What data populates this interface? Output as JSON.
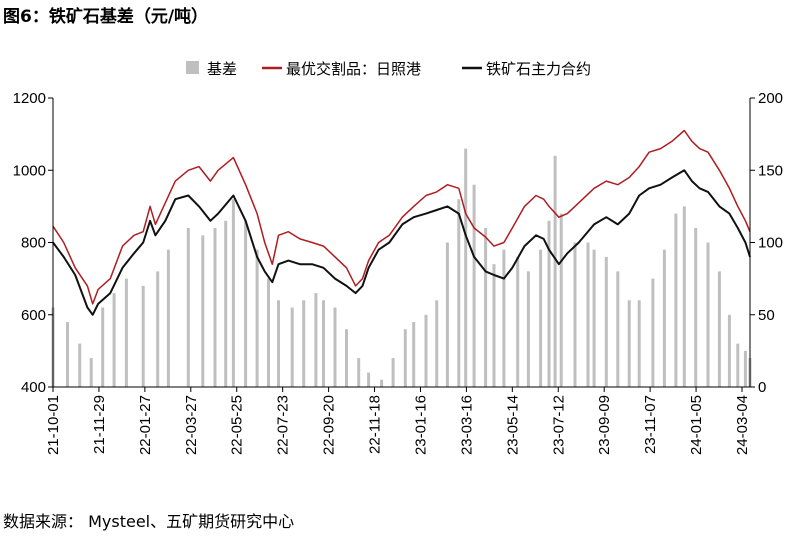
{
  "figure": {
    "title": "图6：铁矿石基差（元/吨）",
    "source": "数据来源： Mysteel、五矿期货研究中心"
  },
  "colors": {
    "basis": "#bfbfbf",
    "spot": "#b01c20",
    "futures": "#111111"
  },
  "chart_data": {
    "type": "line",
    "title": "",
    "legend_position": "top",
    "grid": false,
    "x_ticks": [
      "21-10-01",
      "21-11-29",
      "22-01-27",
      "22-03-27",
      "22-05-25",
      "22-07-23",
      "22-09-20",
      "22-11-18",
      "23-01-16",
      "23-03-16",
      "23-05-14",
      "23-07-12",
      "23-09-09",
      "23-11-07",
      "24-01-05",
      "24-03-04"
    ],
    "x_range": [
      "2021-10-01",
      "2024-03-31"
    ],
    "y_left": {
      "range": [
        400,
        1200
      ],
      "ticks": [
        400,
        600,
        800,
        1000,
        1200
      ]
    },
    "y_right": {
      "range": [
        0,
        200
      ],
      "ticks": [
        0,
        50,
        100,
        150,
        200
      ]
    },
    "series": [
      {
        "name": "基差",
        "type": "bar",
        "axis": "right",
        "color_key": "basis",
        "points": [
          [
            "2021-10-01",
            55
          ],
          [
            "2021-10-20",
            45
          ],
          [
            "2021-11-05",
            30
          ],
          [
            "2021-11-20",
            20
          ],
          [
            "2021-12-05",
            55
          ],
          [
            "2021-12-20",
            65
          ],
          [
            "2022-01-05",
            75
          ],
          [
            "2022-01-27",
            70
          ],
          [
            "2022-02-15",
            80
          ],
          [
            "2022-03-01",
            95
          ],
          [
            "2022-03-27",
            110
          ],
          [
            "2022-04-15",
            105
          ],
          [
            "2022-05-01",
            110
          ],
          [
            "2022-05-15",
            115
          ],
          [
            "2022-05-25",
            130
          ],
          [
            "2022-06-10",
            115
          ],
          [
            "2022-06-25",
            95
          ],
          [
            "2022-07-10",
            75
          ],
          [
            "2022-07-23",
            60
          ],
          [
            "2022-08-10",
            55
          ],
          [
            "2022-08-25",
            60
          ],
          [
            "2022-09-10",
            65
          ],
          [
            "2022-09-20",
            60
          ],
          [
            "2022-10-05",
            55
          ],
          [
            "2022-10-20",
            40
          ],
          [
            "2022-11-05",
            20
          ],
          [
            "2022-11-18",
            10
          ],
          [
            "2022-12-05",
            5
          ],
          [
            "2022-12-20",
            20
          ],
          [
            "2023-01-05",
            40
          ],
          [
            "2023-01-16",
            45
          ],
          [
            "2023-02-01",
            50
          ],
          [
            "2023-02-15",
            60
          ],
          [
            "2023-03-01",
            100
          ],
          [
            "2023-03-16",
            130
          ],
          [
            "2023-03-25",
            165
          ],
          [
            "2023-04-05",
            140
          ],
          [
            "2023-04-20",
            110
          ],
          [
            "2023-05-01",
            85
          ],
          [
            "2023-05-14",
            95
          ],
          [
            "2023-06-01",
            90
          ],
          [
            "2023-06-15",
            80
          ],
          [
            "2023-07-01",
            95
          ],
          [
            "2023-07-12",
            115
          ],
          [
            "2023-07-20",
            160
          ],
          [
            "2023-07-28",
            120
          ],
          [
            "2023-08-15",
            100
          ],
          [
            "2023-09-01",
            100
          ],
          [
            "2023-09-09",
            95
          ],
          [
            "2023-09-25",
            90
          ],
          [
            "2023-10-10",
            80
          ],
          [
            "2023-10-25",
            60
          ],
          [
            "2023-11-07",
            60
          ],
          [
            "2023-11-25",
            75
          ],
          [
            "2023-12-10",
            95
          ],
          [
            "2023-12-25",
            120
          ],
          [
            "2024-01-05",
            125
          ],
          [
            "2024-01-20",
            110
          ],
          [
            "2024-02-05",
            100
          ],
          [
            "2024-02-20",
            80
          ],
          [
            "2024-03-04",
            50
          ],
          [
            "2024-03-15",
            30
          ],
          [
            "2024-03-25",
            25
          ],
          [
            "2024-03-31",
            20
          ]
        ]
      },
      {
        "name": "最优交割品：日照港",
        "type": "line",
        "axis": "left",
        "color_key": "spot",
        "points": [
          [
            "2021-10-01",
            845
          ],
          [
            "2021-10-15",
            800
          ],
          [
            "2021-10-30",
            730
          ],
          [
            "2021-11-15",
            680
          ],
          [
            "2021-11-22",
            630
          ],
          [
            "2021-11-29",
            670
          ],
          [
            "2021-12-15",
            700
          ],
          [
            "2021-12-31",
            790
          ],
          [
            "2022-01-15",
            820
          ],
          [
            "2022-01-27",
            830
          ],
          [
            "2022-02-05",
            900
          ],
          [
            "2022-02-12",
            850
          ],
          [
            "2022-02-25",
            910
          ],
          [
            "2022-03-10",
            970
          ],
          [
            "2022-03-27",
            1000
          ],
          [
            "2022-04-10",
            1010
          ],
          [
            "2022-04-25",
            970
          ],
          [
            "2022-05-05",
            1000
          ],
          [
            "2022-05-25",
            1035
          ],
          [
            "2022-06-10",
            960
          ],
          [
            "2022-06-25",
            880
          ],
          [
            "2022-07-05",
            800
          ],
          [
            "2022-07-15",
            740
          ],
          [
            "2022-07-23",
            820
          ],
          [
            "2022-08-05",
            830
          ],
          [
            "2022-08-20",
            810
          ],
          [
            "2022-09-05",
            800
          ],
          [
            "2022-09-20",
            790
          ],
          [
            "2022-10-05",
            760
          ],
          [
            "2022-10-20",
            730
          ],
          [
            "2022-11-01",
            680
          ],
          [
            "2022-11-10",
            700
          ],
          [
            "2022-11-18",
            750
          ],
          [
            "2022-12-01",
            800
          ],
          [
            "2022-12-15",
            820
          ],
          [
            "2023-01-01",
            870
          ],
          [
            "2023-01-16",
            900
          ],
          [
            "2023-02-01",
            930
          ],
          [
            "2023-02-15",
            940
          ],
          [
            "2023-03-01",
            960
          ],
          [
            "2023-03-16",
            950
          ],
          [
            "2023-03-25",
            880
          ],
          [
            "2023-04-05",
            840
          ],
          [
            "2023-04-20",
            815
          ],
          [
            "2023-05-01",
            790
          ],
          [
            "2023-05-14",
            800
          ],
          [
            "2023-05-25",
            840
          ],
          [
            "2023-06-10",
            900
          ],
          [
            "2023-06-25",
            930
          ],
          [
            "2023-07-05",
            920
          ],
          [
            "2023-07-12",
            900
          ],
          [
            "2023-07-25",
            870
          ],
          [
            "2023-08-05",
            880
          ],
          [
            "2023-08-20",
            910
          ],
          [
            "2023-09-09",
            950
          ],
          [
            "2023-09-25",
            970
          ],
          [
            "2023-10-10",
            960
          ],
          [
            "2023-10-25",
            980
          ],
          [
            "2023-11-07",
            1010
          ],
          [
            "2023-11-20",
            1050
          ],
          [
            "2023-12-05",
            1060
          ],
          [
            "2023-12-20",
            1080
          ],
          [
            "2024-01-05",
            1110
          ],
          [
            "2024-01-15",
            1080
          ],
          [
            "2024-01-25",
            1060
          ],
          [
            "2024-02-05",
            1050
          ],
          [
            "2024-02-20",
            1000
          ],
          [
            "2024-03-04",
            950
          ],
          [
            "2024-03-15",
            900
          ],
          [
            "2024-03-25",
            860
          ],
          [
            "2024-03-31",
            830
          ]
        ]
      },
      {
        "name": "铁矿石主力合约",
        "type": "line",
        "axis": "left",
        "color_key": "futures",
        "points": [
          [
            "2021-10-01",
            800
          ],
          [
            "2021-10-15",
            760
          ],
          [
            "2021-10-30",
            710
          ],
          [
            "2021-11-15",
            620
          ],
          [
            "2021-11-22",
            600
          ],
          [
            "2021-11-29",
            630
          ],
          [
            "2021-12-15",
            660
          ],
          [
            "2021-12-31",
            730
          ],
          [
            "2022-01-15",
            770
          ],
          [
            "2022-01-27",
            800
          ],
          [
            "2022-02-05",
            860
          ],
          [
            "2022-02-12",
            820
          ],
          [
            "2022-02-25",
            860
          ],
          [
            "2022-03-10",
            920
          ],
          [
            "2022-03-27",
            930
          ],
          [
            "2022-04-10",
            900
          ],
          [
            "2022-04-25",
            860
          ],
          [
            "2022-05-05",
            880
          ],
          [
            "2022-05-25",
            930
          ],
          [
            "2022-06-10",
            860
          ],
          [
            "2022-06-25",
            760
          ],
          [
            "2022-07-05",
            720
          ],
          [
            "2022-07-15",
            690
          ],
          [
            "2022-07-23",
            740
          ],
          [
            "2022-08-05",
            750
          ],
          [
            "2022-08-20",
            740
          ],
          [
            "2022-09-05",
            740
          ],
          [
            "2022-09-20",
            730
          ],
          [
            "2022-10-05",
            700
          ],
          [
            "2022-10-20",
            680
          ],
          [
            "2022-11-01",
            660
          ],
          [
            "2022-11-10",
            680
          ],
          [
            "2022-11-18",
            730
          ],
          [
            "2022-12-01",
            780
          ],
          [
            "2022-12-15",
            800
          ],
          [
            "2023-01-01",
            850
          ],
          [
            "2023-01-16",
            870
          ],
          [
            "2023-02-01",
            880
          ],
          [
            "2023-02-15",
            890
          ],
          [
            "2023-03-01",
            900
          ],
          [
            "2023-03-16",
            880
          ],
          [
            "2023-03-25",
            820
          ],
          [
            "2023-04-05",
            760
          ],
          [
            "2023-04-20",
            720
          ],
          [
            "2023-05-01",
            710
          ],
          [
            "2023-05-14",
            700
          ],
          [
            "2023-05-25",
            730
          ],
          [
            "2023-06-10",
            790
          ],
          [
            "2023-06-25",
            820
          ],
          [
            "2023-07-05",
            810
          ],
          [
            "2023-07-12",
            780
          ],
          [
            "2023-07-25",
            740
          ],
          [
            "2023-08-05",
            770
          ],
          [
            "2023-08-20",
            800
          ],
          [
            "2023-09-09",
            850
          ],
          [
            "2023-09-25",
            870
          ],
          [
            "2023-10-10",
            850
          ],
          [
            "2023-10-25",
            880
          ],
          [
            "2023-11-07",
            930
          ],
          [
            "2023-11-20",
            950
          ],
          [
            "2023-12-05",
            960
          ],
          [
            "2023-12-20",
            980
          ],
          [
            "2024-01-05",
            1000
          ],
          [
            "2024-01-15",
            970
          ],
          [
            "2024-01-25",
            950
          ],
          [
            "2024-02-05",
            940
          ],
          [
            "2024-02-20",
            900
          ],
          [
            "2024-03-04",
            880
          ],
          [
            "2024-03-15",
            840
          ],
          [
            "2024-03-25",
            800
          ],
          [
            "2024-03-31",
            760
          ]
        ]
      }
    ]
  }
}
